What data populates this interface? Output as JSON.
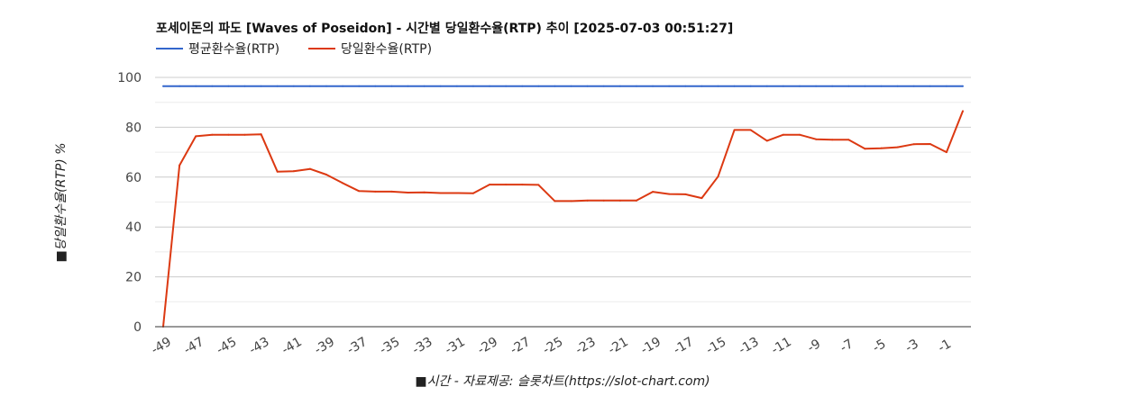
{
  "chart_data": {
    "type": "line",
    "title": "포세이돈의 파도 [Waves of Poseidon] - 시간별 당일환수율(RTP) 추이 [2025-07-03 00:51:27]",
    "xlabel": "■시간 - 자료제공: 슬롯차트(https://slot-chart.com)",
    "ylabel": "■당일환수율(RTP) %",
    "ylim": [
      0,
      100
    ],
    "yticks": [
      "0",
      "20",
      "40",
      "60",
      "80",
      "100"
    ],
    "xticks": [
      "-49",
      "-47",
      "-45",
      "-43",
      "-41",
      "-39",
      "-37",
      "-35",
      "-33",
      "-31",
      "-29",
      "-27",
      "-25",
      "-23",
      "-21",
      "-19",
      "-17",
      "-15",
      "-13",
      "-11",
      "-9",
      "-7",
      "-5",
      "-3",
      "-1"
    ],
    "x": [
      -49,
      -48,
      -47,
      -46,
      -45,
      -44,
      -43,
      -42,
      -41,
      -40,
      -39,
      -38,
      -37,
      -36,
      -35,
      -34,
      -33,
      -32,
      -31,
      -30,
      -29,
      -28,
      -27,
      -26,
      -25,
      -24,
      -23,
      -22,
      -21,
      -20,
      -19,
      -18,
      -17,
      -16,
      -15,
      -14,
      -13,
      -12,
      -11,
      -10,
      -9,
      -8,
      -7,
      -6,
      -5,
      -4,
      -3,
      -2,
      -1,
      0
    ],
    "grid": true,
    "legend_position": "top-left",
    "series": [
      {
        "name": "평균환수율(RTP)",
        "color": "#3366cc",
        "values": [
          96.5,
          96.5,
          96.5,
          96.5,
          96.5,
          96.5,
          96.5,
          96.5,
          96.5,
          96.5,
          96.5,
          96.5,
          96.5,
          96.5,
          96.5,
          96.5,
          96.5,
          96.5,
          96.5,
          96.5,
          96.5,
          96.5,
          96.5,
          96.5,
          96.5,
          96.5,
          96.5,
          96.5,
          96.5,
          96.5,
          96.5,
          96.5,
          96.5,
          96.5,
          96.5,
          96.5,
          96.5,
          96.5,
          96.5,
          96.5,
          96.5,
          96.5,
          96.5,
          96.5,
          96.5,
          96.5,
          96.5,
          96.5,
          96.5,
          96.5
        ]
      },
      {
        "name": "당일환수율(RTP)",
        "color": "#dc3912",
        "values": [
          0,
          64.7,
          76.4,
          77,
          77,
          77,
          77.2,
          62.2,
          62.4,
          63.3,
          61,
          57.6,
          54.4,
          54.2,
          54.2,
          53.8,
          53.9,
          53.6,
          53.6,
          53.5,
          57,
          57,
          57,
          56.9,
          50.4,
          50.4,
          50.6,
          50.6,
          50.6,
          50.6,
          54.1,
          53.2,
          53.1,
          51.6,
          60.2,
          78.9,
          78.9,
          74.6,
          77,
          77,
          75.2,
          75,
          75,
          71.4,
          71.6,
          72,
          73.2,
          73.3,
          70,
          86.5
        ]
      }
    ]
  }
}
